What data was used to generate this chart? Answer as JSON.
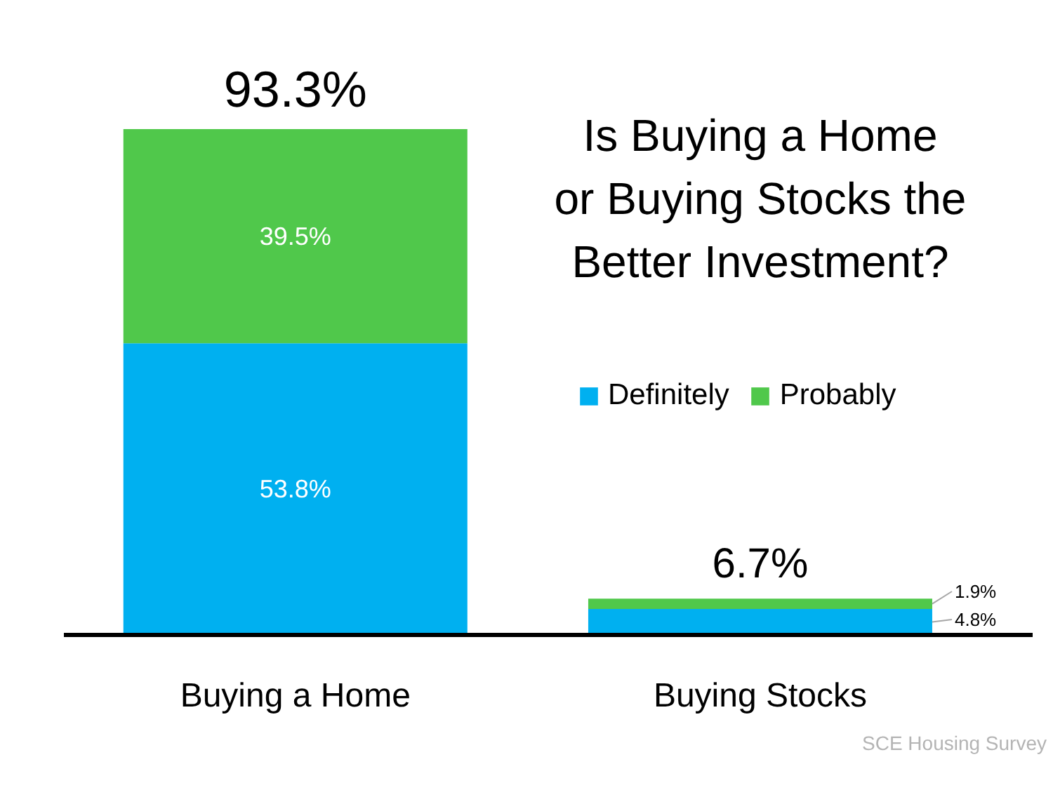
{
  "chart_data": {
    "type": "bar",
    "title": "Is Buying a Home\nor Buying Stocks the\nBetter Investment?",
    "categories": [
      "Buying a Home",
      "Buying Stocks"
    ],
    "stacked": true,
    "series": [
      {
        "name": "Definitely",
        "color": "#00b0f0",
        "values": [
          53.8,
          4.8
        ],
        "value_labels": [
          "53.8%",
          "4.8%"
        ]
      },
      {
        "name": "Probably",
        "color": "#50c84b",
        "values": [
          39.5,
          1.9
        ],
        "value_labels": [
          "39.5%",
          "1.9%"
        ]
      }
    ],
    "totals": [
      "93.3%",
      "6.7%"
    ],
    "tick_labels": "x",
    "legend": "right",
    "annotations": [
      "SCE Housing Survey"
    ]
  }
}
